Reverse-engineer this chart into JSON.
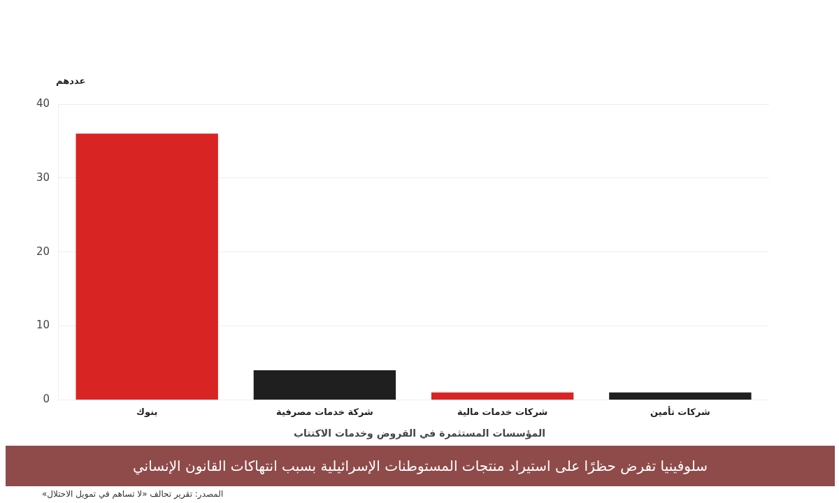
{
  "chart_data": {
    "type": "bar",
    "title": "سلوفينيا تفرض حظرًا على استيراد منتجات المستوطنات الإسرائيلية بسبب انتهاكات القانون الإنساني",
    "xlabel": "المؤسسات المستثمرة في القروض وخدمات الاكتتاب",
    "ylabel": "عددهم",
    "categories": [
      "بنوك",
      "شركة خدمات مصرفية",
      "شركات خدمات مالية",
      "شركات تأمين"
    ],
    "values": [
      36,
      4,
      1,
      1
    ],
    "colors": [
      "#d92424",
      "#1f1f1f",
      "#d92424",
      "#1f1f1f"
    ],
    "ylim": [
      0,
      40
    ],
    "yticks": [
      0,
      10,
      20,
      30,
      40
    ],
    "grid": "y",
    "annotations": [
      "المصدر: تقرير تحالف «لا تساهم في تمويل الاحتلال»"
    ]
  }
}
